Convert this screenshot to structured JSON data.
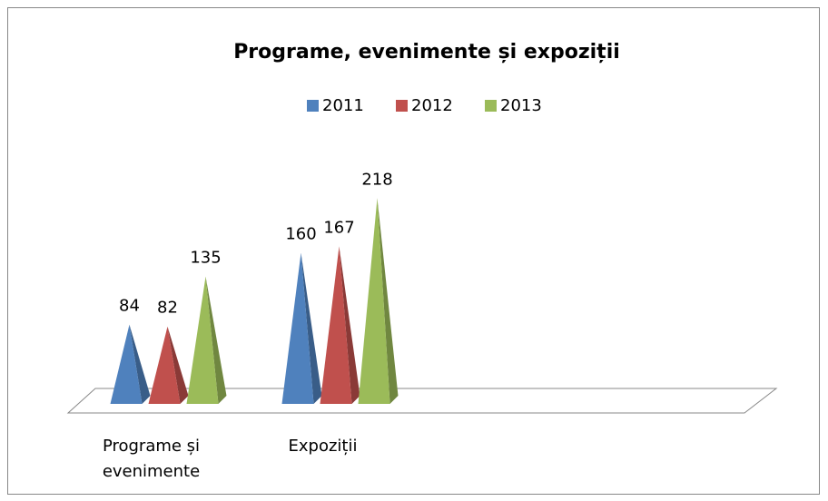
{
  "chart_data": {
    "type": "pyramid3d",
    "title": "Programe, evenimente și expoziții",
    "categories": [
      "Programe și evenimente",
      "Expoziții",
      null,
      null
    ],
    "series": [
      {
        "name": "2011",
        "color": "#4f81bd",
        "values": [
          84,
          160,
          null,
          null
        ]
      },
      {
        "name": "2012",
        "color": "#c0504d",
        "values": [
          82,
          167,
          null,
          null
        ]
      },
      {
        "name": "2013",
        "color": "#9bbb59",
        "values": [
          135,
          218,
          null,
          null
        ]
      }
    ],
    "legend": "top"
  }
}
